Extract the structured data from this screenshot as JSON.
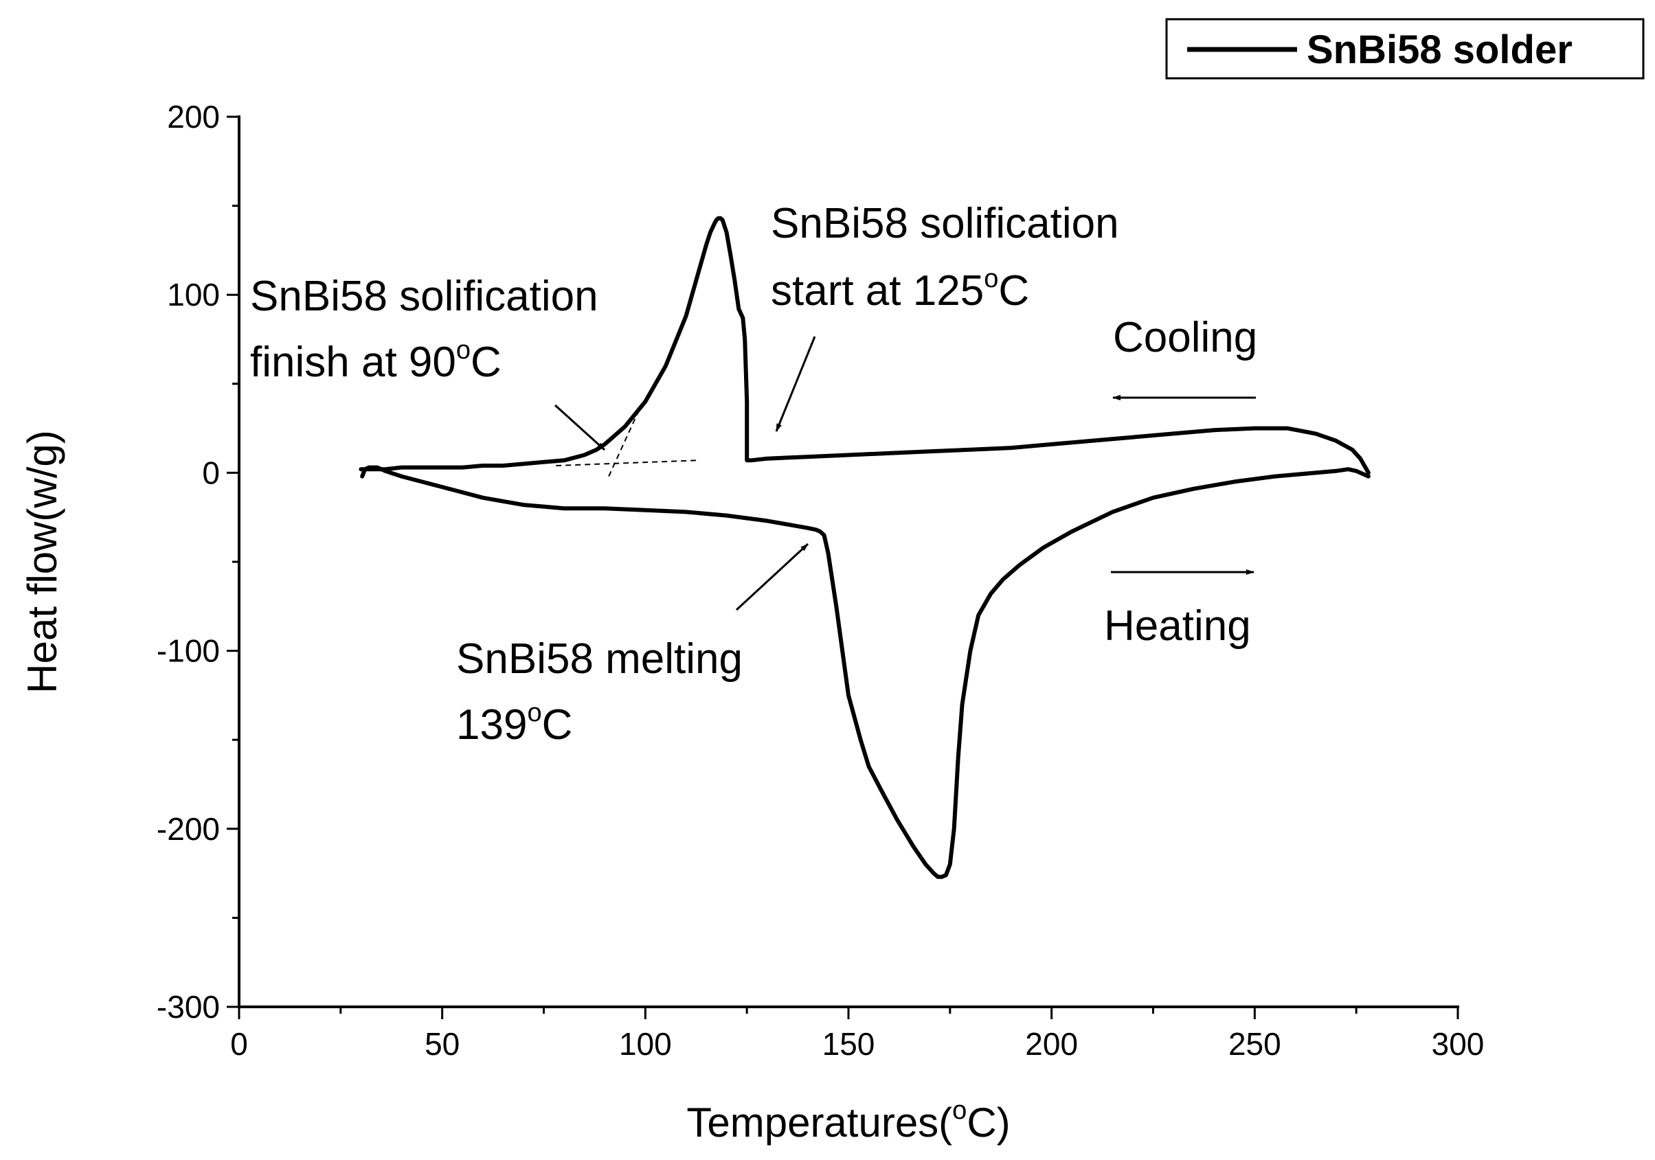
{
  "chart_data": {
    "type": "line",
    "xlabel": "Temperatures(",
    "xlabel_sup": "o",
    "xlabel_tail": "C)",
    "ylabel": "Heat flow(w/g)",
    "xlim": [
      0,
      300
    ],
    "ylim": [
      -300,
      200
    ],
    "x_ticks": [
      0,
      50,
      100,
      150,
      200,
      250,
      300
    ],
    "y_ticks": [
      200,
      100,
      0,
      -100,
      -200,
      -300
    ],
    "x_tick_labels": [
      "0",
      "50",
      "100",
      "150",
      "200",
      "250",
      "300"
    ],
    "y_tick_labels": [
      "200",
      "100",
      "0",
      "-100",
      "-200",
      "-300"
    ],
    "grid": false,
    "legend": {
      "position": "top-right",
      "entries": [
        "SnBi58 solder"
      ]
    },
    "series": [
      {
        "name": "SnBi58 solder",
        "color": "#000000",
        "segments": {
          "heating": {
            "x": [
              30.3,
              31,
              32,
              33,
              34,
              36,
              40,
              45,
              50,
              55,
              60,
              65,
              70,
              75,
              80,
              90,
              100,
              110,
              120,
              130,
              135,
              140,
              142,
              143,
              144,
              145,
              147,
              150,
              153,
              155,
              158,
              162,
              166,
              169,
              171,
              172,
              173,
              174,
              175,
              176,
              177,
              178,
              180,
              182,
              185,
              188,
              192,
              198,
              205,
              215,
              225,
              235,
              245,
              255,
              265,
              270,
              273,
              275,
              276,
              277,
              278
            ],
            "y": [
              -2,
              2,
              3,
              3,
              3,
              1,
              -2,
              -5,
              -8,
              -11,
              -14,
              -16,
              -18,
              -19,
              -20,
              -20,
              -21,
              -22,
              -24,
              -27,
              -29,
              -31,
              -32,
              -33,
              -35,
              -45,
              -75,
              -125,
              -150,
              -165,
              -178,
              -195,
              -210,
              -220,
              -225,
              -227,
              -227,
              -226,
              -220,
              -200,
              -160,
              -130,
              -100,
              -80,
              -68,
              -60,
              -52,
              -42,
              -33,
              -22,
              -14,
              -9,
              -5,
              -2,
              0,
              1,
              2,
              1,
              0,
              -1,
              -2
            ]
          },
          "cooling": {
            "x": [
              278,
              276,
              274,
              270,
              265,
              258,
              250,
              240,
              230,
              220,
              210,
              200,
              190,
              180,
              170,
              160,
              150,
              140,
              130,
              126,
              125,
              125,
              124.5,
              124,
              123,
              122,
              121,
              120,
              119,
              118.5,
              118,
              117.5,
              117,
              116,
              115,
              113,
              110,
              105,
              100,
              95,
              92,
              90,
              88,
              85,
              80,
              75,
              70,
              65,
              60,
              55,
              50,
              45,
              40,
              36,
              34,
              33,
              32,
              31,
              30
            ],
            "y": [
              0,
              8,
              13,
              18,
              22,
              25,
              25,
              24,
              22,
              20,
              18,
              16,
              14,
              13,
              12,
              11,
              10,
              9,
              8,
              7,
              7,
              40,
              75,
              87,
              92,
              108,
              122,
              135,
              142,
              143,
              143,
              142,
              140,
              135,
              128,
              112,
              88,
              60,
              40,
              26,
              20,
              16,
              13,
              10,
              7,
              6,
              5,
              4,
              4,
              3,
              3,
              3,
              3,
              2,
              2,
              2,
              2,
              2,
              2
            ]
          }
        }
      }
    ],
    "construction_lines": [
      {
        "name": "baseline-tangent",
        "x": [
          78,
          113
        ],
        "y": [
          4,
          7
        ]
      },
      {
        "name": "slope-tangent",
        "x": [
          91,
          99
        ],
        "y": [
          -2,
          38
        ]
      }
    ],
    "annotations": [
      {
        "id": "sol-finish",
        "lines": [
          {
            "text": "SnBi58 solification"
          },
          {
            "text": "finish at 90",
            "sup": "o",
            "tail": "C"
          }
        ]
      },
      {
        "id": "sol-start",
        "lines": [
          {
            "text": "SnBi58 solification"
          },
          {
            "text": "start at 125",
            "sup": "o",
            "tail": "C"
          }
        ]
      },
      {
        "id": "cooling",
        "lines": [
          {
            "text": "Cooling"
          }
        ]
      },
      {
        "id": "heating",
        "lines": [
          {
            "text": "Heating"
          }
        ]
      },
      {
        "id": "melting",
        "lines": [
          {
            "text": "SnBi58 melting"
          },
          {
            "text": "139",
            "sup": "o",
            "tail": "C"
          }
        ]
      }
    ]
  }
}
